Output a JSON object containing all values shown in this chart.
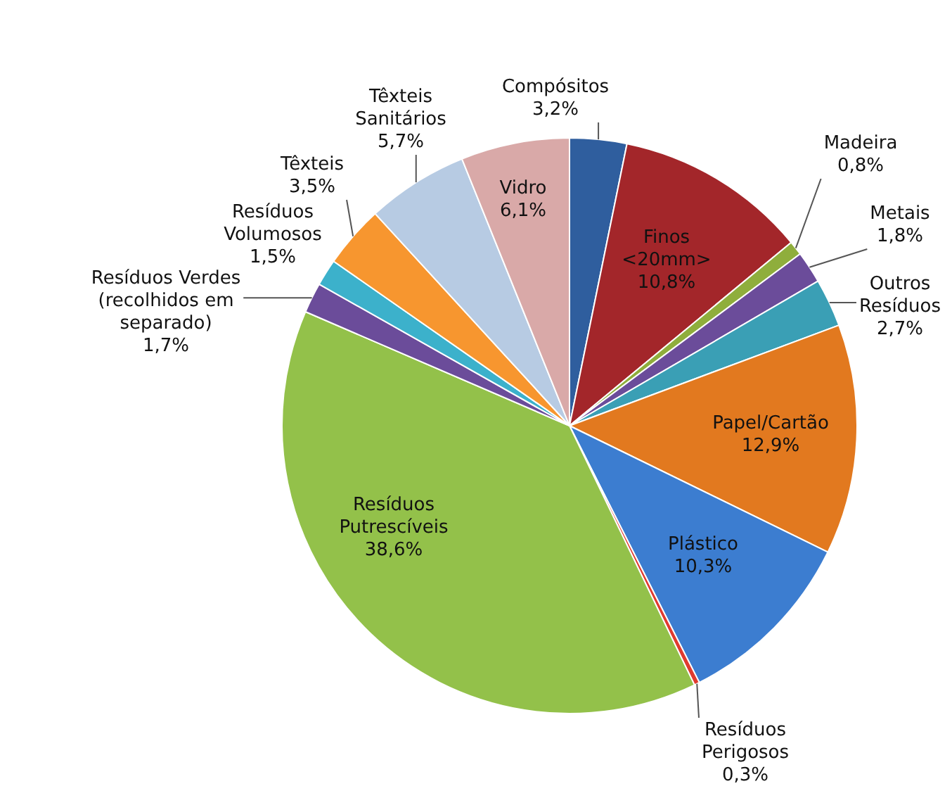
{
  "chart_data": {
    "type": "pie",
    "categories": [
      "Compósitos",
      "Finos <20mm>",
      "Madeira",
      "Metais",
      "Outros Resíduos",
      "Papel/Cartão",
      "Plástico",
      "Resíduos Perigosos",
      "Resíduos Putrescíveis",
      "Resíduos Verdes (recolhidos em separado)",
      "Resíduos Volumosos",
      "Têxteis",
      "Têxteis Sanitários",
      "Vidro"
    ],
    "values": [
      3.2,
      10.8,
      0.8,
      1.8,
      2.7,
      12.9,
      10.3,
      0.3,
      38.6,
      1.7,
      1.5,
      3.5,
      5.7,
      6.1
    ],
    "value_labels": [
      "3,2%",
      "10,8%",
      "0,8%",
      "1,8%",
      "2,7%",
      "12,9%",
      "10,3%",
      "0,3%",
      "38,6%",
      "1,7%",
      "1,5%",
      "3,5%",
      "5,7%",
      "6,1%"
    ],
    "colors": [
      "#2f5e9e",
      "#a3262a",
      "#8fae3c",
      "#6b4c9a",
      "#3a9fb5",
      "#e2791f",
      "#3c7dd0",
      "#e03a2f",
      "#93c14a",
      "#6b4c9a",
      "#3cb1cb",
      "#f7962f",
      "#b7cbe3",
      "#d9a9a8"
    ],
    "legend": false
  }
}
